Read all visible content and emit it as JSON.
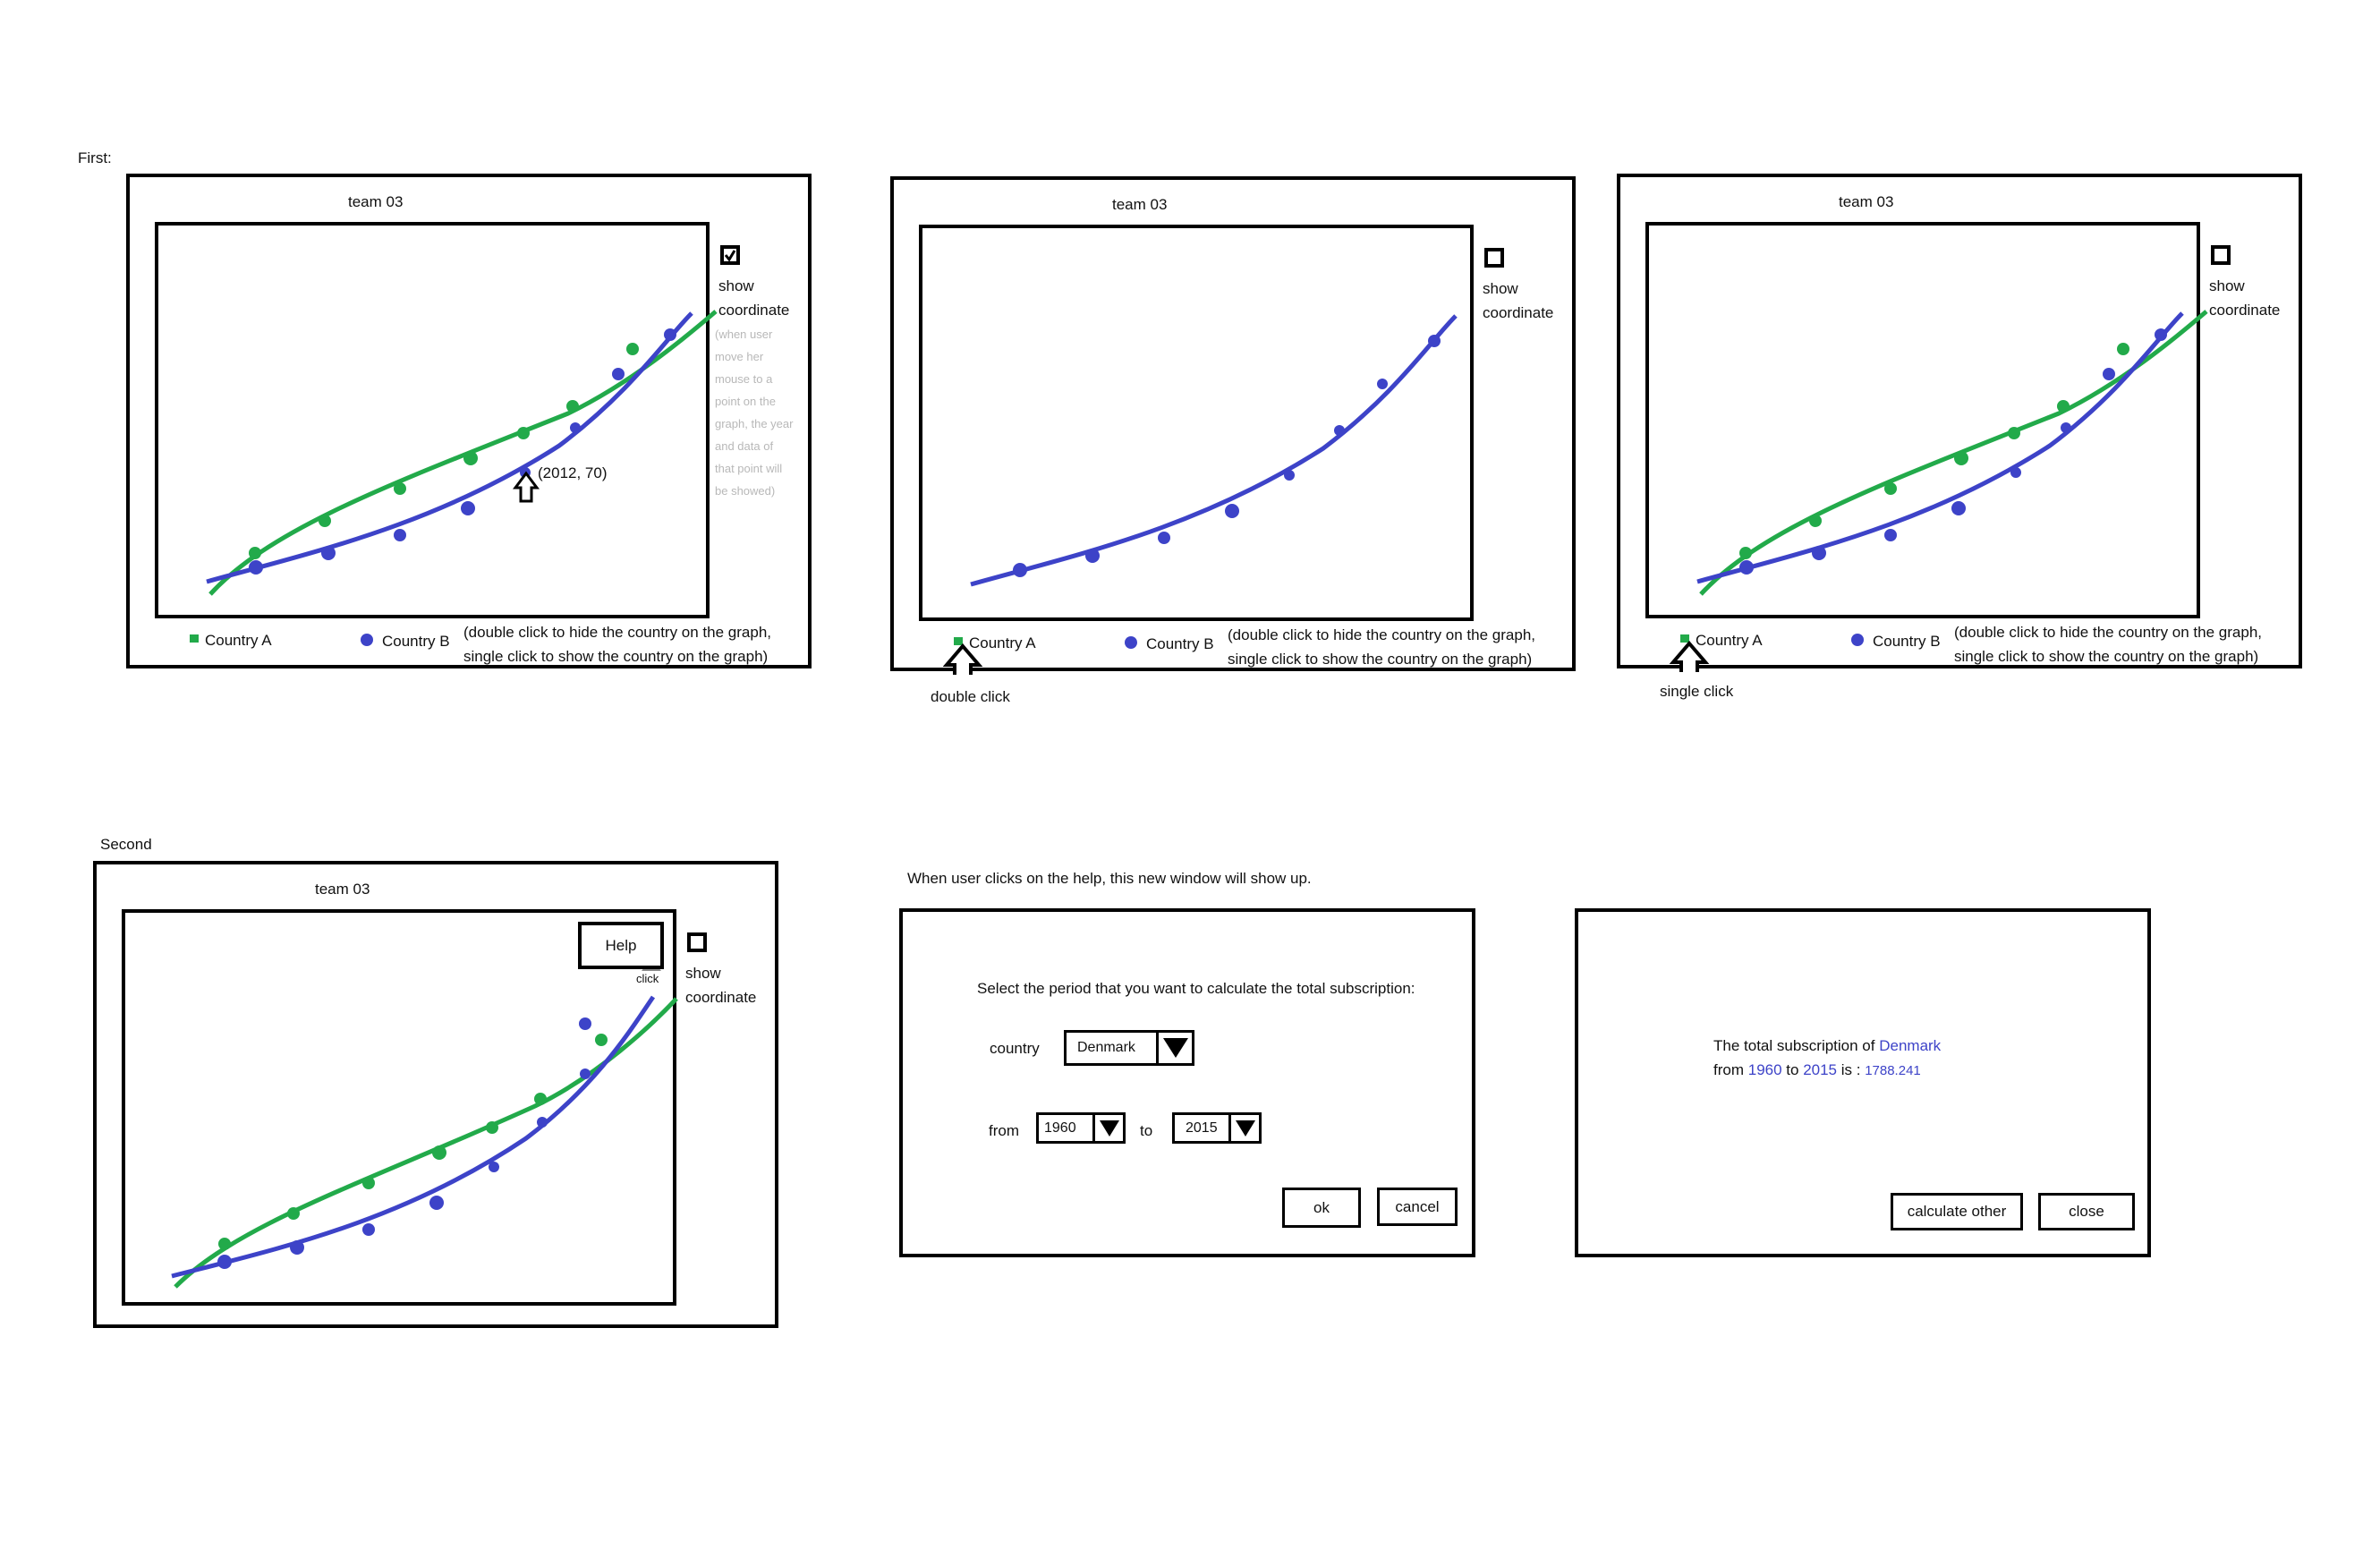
{
  "labels": {
    "first": "First:",
    "second": "Second",
    "help_intro": "When user clicks on the help, this new window will show up."
  },
  "colors": {
    "country_a": "#22aa4a",
    "country_b": "#3d43c8"
  },
  "panel": {
    "title": "team 03",
    "show_coord_line1": "show",
    "show_coord_line2": "coordinate",
    "legend_a": "Country A",
    "legend_b": "Country B",
    "legend_note_line1": "(double click to hide the country on the graph,",
    "legend_note_line2": "single click to show the country on the graph)"
  },
  "panel1": {
    "hint_lines": [
      "(when user",
      "move her",
      "mouse to a",
      "point on the",
      "graph, the year",
      "and data of",
      "that point will",
      "be showed)"
    ],
    "tooltip": "(2012, 70)"
  },
  "annotations": {
    "double_click": "double click",
    "single_click": "single click",
    "click": "click"
  },
  "panel4": {
    "help_button": "Help"
  },
  "dialog": {
    "prompt": "Select the period that you want to calculate the total subscription:",
    "country_label": "country",
    "country_value": "Denmark",
    "from_label": "from",
    "from_value": "1960",
    "to_label": "to",
    "to_value": "2015",
    "ok": "ok",
    "cancel": "cancel"
  },
  "result": {
    "line1_prefix": "The total subscription of ",
    "country": "Denmark",
    "from_word": "from ",
    "from_year": "1960",
    "to_word": " to ",
    "to_year": "2015",
    "is_word": " is : ",
    "total": "1788.241",
    "calc_other": "calculate other",
    "close": "close"
  }
}
